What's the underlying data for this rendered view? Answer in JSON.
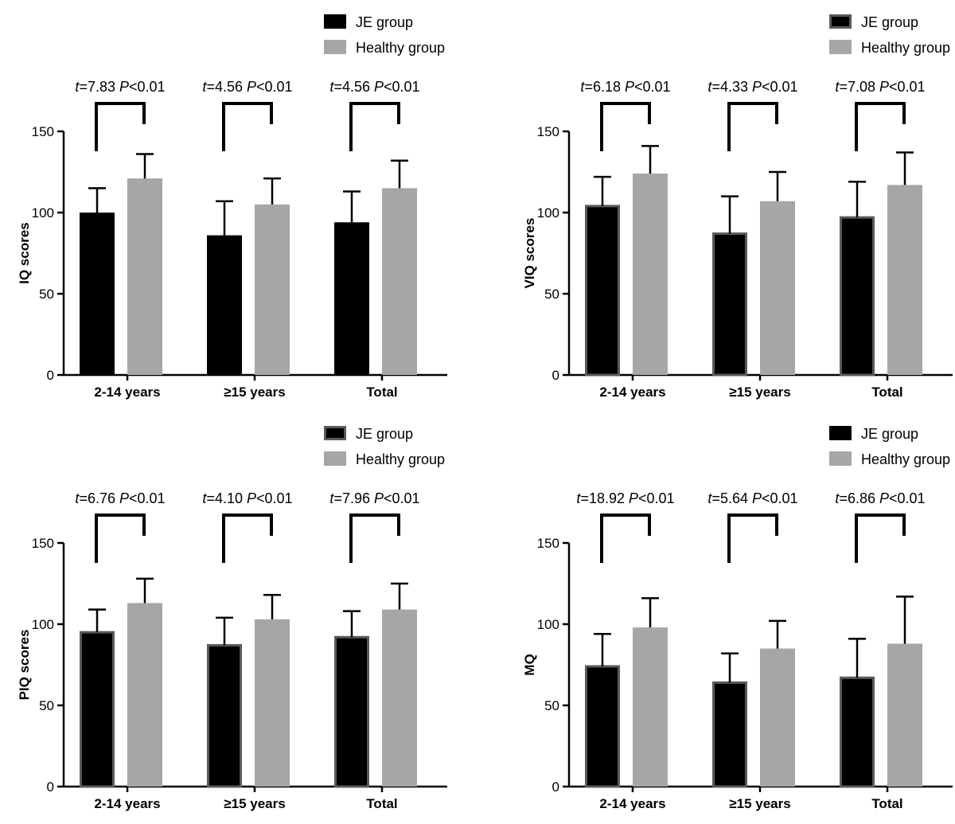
{
  "chart_data": [
    {
      "type": "bar",
      "panel": "top-left",
      "ylabel": "IQ scores",
      "xlabel": "",
      "ylim": [
        0,
        150
      ],
      "yticks": [
        "0",
        "50",
        "100",
        "150"
      ],
      "categories": [
        "2-14 years",
        "≥15 years",
        "Total"
      ],
      "legend": {
        "placement": "top-right",
        "bordered_swatches": false
      },
      "series": [
        {
          "name": "JE group",
          "color": "#000000",
          "edge": "#000000",
          "values": [
            100,
            86,
            94
          ],
          "errors": [
            15,
            21,
            19
          ]
        },
        {
          "name": "Healthy group",
          "color": "#a6a6a8",
          "edge": "#a6a6a8",
          "values": [
            121,
            105,
            115
          ],
          "errors": [
            15,
            16,
            17
          ]
        }
      ],
      "annotations": [
        {
          "t": "7.83",
          "p": "0.01"
        },
        {
          "t": "4.56",
          "p": "0.01"
        },
        {
          "t": "4.56",
          "p": "0.01"
        }
      ]
    },
    {
      "type": "bar",
      "panel": "top-right",
      "ylabel": "VIQ scores",
      "xlabel": "",
      "ylim": [
        0,
        150
      ],
      "yticks": [
        "0",
        "50",
        "100",
        "150"
      ],
      "categories": [
        "2-14 years",
        "≥15 years",
        "Total"
      ],
      "legend": {
        "placement": "top-right",
        "bordered_swatches": true
      },
      "series": [
        {
          "name": "JE group",
          "color": "#000000",
          "edge": "#5a5a5a",
          "values": [
            104,
            87,
            97
          ],
          "errors": [
            18,
            23,
            22
          ]
        },
        {
          "name": "Healthy group",
          "color": "#a6a6a8",
          "edge": "#a6a6a8",
          "values": [
            124,
            107,
            117
          ],
          "errors": [
            17,
            18,
            20
          ]
        }
      ],
      "annotations": [
        {
          "t": "6.18",
          "p": "0.01"
        },
        {
          "t": "4.33",
          "p": "0.01"
        },
        {
          "t": "7.08",
          "p": "0.01"
        }
      ]
    },
    {
      "type": "bar",
      "panel": "bottom-left",
      "ylabel": "PIQ scores",
      "xlabel": "",
      "ylim": [
        0,
        150
      ],
      "yticks": [
        "0",
        "50",
        "100",
        "150"
      ],
      "categories": [
        "2-14 years",
        "≥15 years",
        "Total"
      ],
      "legend": {
        "placement": "top-right",
        "bordered_swatches": true
      },
      "series": [
        {
          "name": "JE group",
          "color": "#000000",
          "edge": "#5a5a5a",
          "values": [
            95,
            87,
            92
          ],
          "errors": [
            14,
            17,
            16
          ]
        },
        {
          "name": "Healthy group",
          "color": "#a6a6a8",
          "edge": "#a6a6a8",
          "values": [
            113,
            103,
            109
          ],
          "errors": [
            15,
            15,
            16
          ]
        }
      ],
      "annotations": [
        {
          "t": "6.76",
          "p": "0.01"
        },
        {
          "t": "4.10",
          "p": "0.01"
        },
        {
          "t": "7.96",
          "p": "0.01"
        }
      ]
    },
    {
      "type": "bar",
      "panel": "bottom-right",
      "ylabel": "MQ",
      "xlabel": "",
      "ylim": [
        0,
        150
      ],
      "yticks": [
        "0",
        "50",
        "100",
        "150"
      ],
      "categories": [
        "2-14 years",
        "≥15 years",
        "Total"
      ],
      "legend": {
        "placement": "top-right",
        "bordered_swatches": false
      },
      "series": [
        {
          "name": "JE group",
          "color": "#000000",
          "edge": "#5a5a5a",
          "values": [
            74,
            64,
            67
          ],
          "errors": [
            20,
            18,
            24
          ]
        },
        {
          "name": "Healthy group",
          "color": "#a6a6a8",
          "edge": "#a6a6a8",
          "values": [
            98,
            85,
            88
          ],
          "errors": [
            18,
            17,
            29
          ]
        }
      ],
      "annotations": [
        {
          "t": "18.92",
          "p": "0.01"
        },
        {
          "t": "5.64",
          "p": "0.01"
        },
        {
          "t": "6.86",
          "p": "0.01"
        }
      ]
    }
  ]
}
